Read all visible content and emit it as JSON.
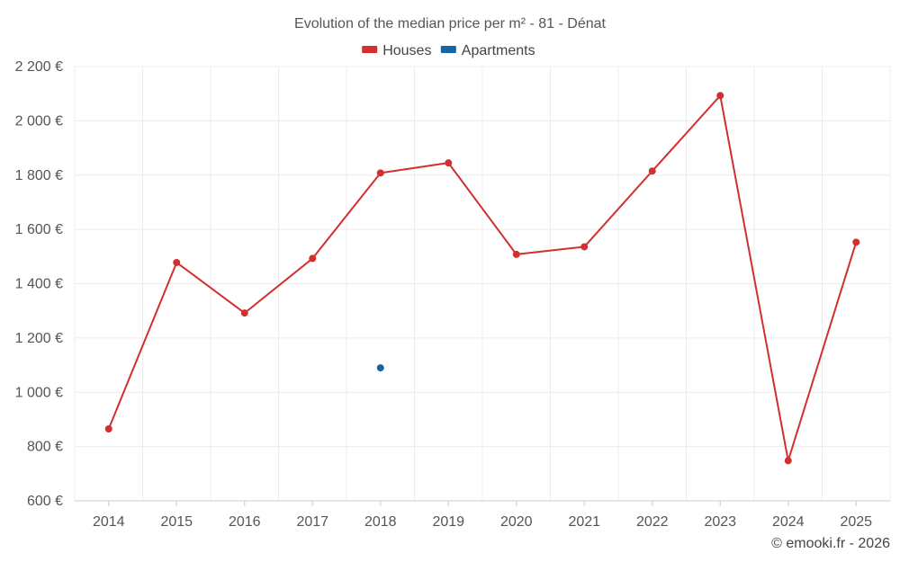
{
  "chart_data": {
    "type": "line",
    "title": "Evolution of the median price per m² - 81 - Dénat",
    "categories": [
      "2014",
      "2015",
      "2016",
      "2017",
      "2018",
      "2019",
      "2020",
      "2021",
      "2022",
      "2023",
      "2024",
      "2025"
    ],
    "ylim": [
      600,
      2200
    ],
    "yticks": [
      600,
      800,
      1000,
      1200,
      1400,
      1600,
      1800,
      2000,
      2200
    ],
    "ytick_labels": [
      "600 €",
      "800 €",
      "1 000 €",
      "1 200 €",
      "1 400 €",
      "1 600 €",
      "1 800 €",
      "2 000 €",
      "2 200 €"
    ],
    "grid": true,
    "legend_position": "top-center",
    "series": [
      {
        "name": "Houses",
        "color": "#d32f2f",
        "values": [
          865,
          1478,
          1292,
          1493,
          1808,
          1845,
          1508,
          1536,
          1815,
          2093,
          748,
          1553
        ]
      },
      {
        "name": "Apartments",
        "color": "#1565a0",
        "values": [
          null,
          null,
          null,
          null,
          1090,
          null,
          null,
          null,
          null,
          null,
          null,
          null
        ]
      }
    ]
  },
  "credit": "© emooki.fr - 2026"
}
